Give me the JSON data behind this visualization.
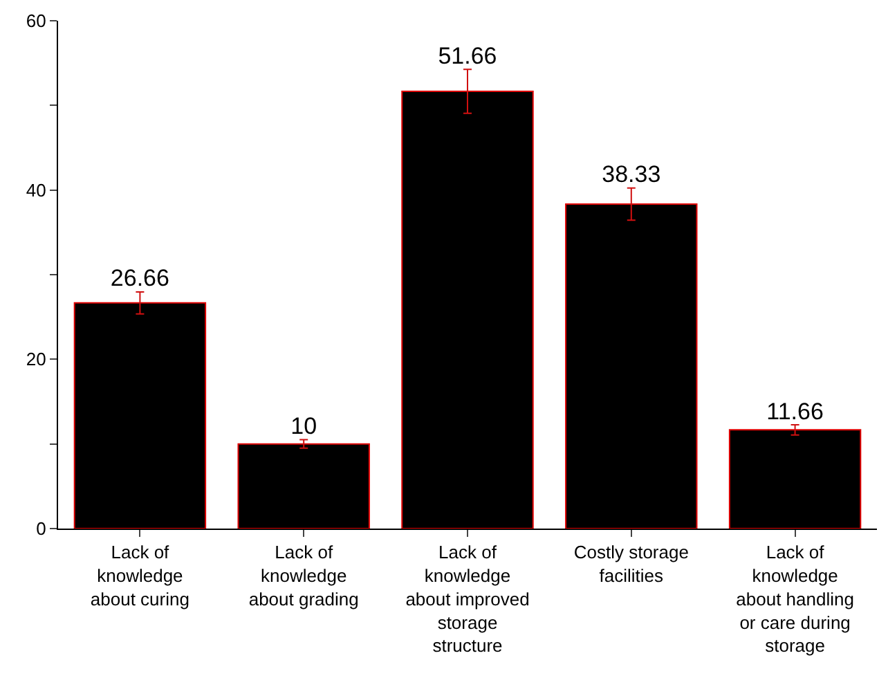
{
  "chart_data": {
    "type": "bar",
    "categories": [
      "Lack of\nknowledge\nabout curing",
      "Lack of\nknowledge\nabout grading",
      "Lack of\nknowledge\nabout improved\nstorage\nstructure",
      "Costly storage\nfacilities",
      "Lack of\nknowledge\nabout handling\nor care during\nstorage"
    ],
    "values": [
      26.66,
      10,
      51.66,
      38.33,
      11.66
    ],
    "errors": [
      1.3,
      0.5,
      2.6,
      1.9,
      0.6
    ],
    "color": "#000000",
    "ylim": [
      0,
      60
    ],
    "yticks": [
      0,
      {
        "value": 10,
        "label": null
      },
      20,
      {
        "value": 30,
        "label": null
      },
      40,
      {
        "value": 50,
        "label": null
      },
      60
    ],
    "data_labels": true
  }
}
